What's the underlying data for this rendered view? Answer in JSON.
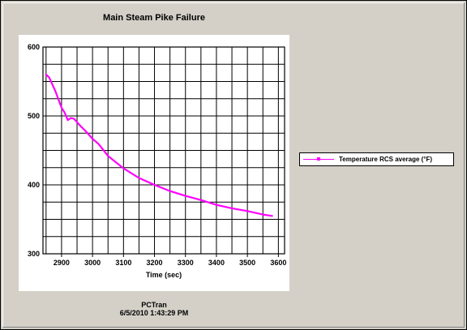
{
  "window": {
    "title": "Main Steam Pike Failure",
    "footer_line1": "PCTran",
    "footer_line2": "6/5/2010 1:43:29 PM"
  },
  "chart_data": {
    "type": "line",
    "title": "Main Steam Pike Failure",
    "xlabel": "Time (sec)",
    "ylabel": "",
    "xlim": [
      2840,
      3620
    ],
    "ylim": [
      300,
      600
    ],
    "x_ticks": [
      2900,
      3000,
      3100,
      3200,
      3300,
      3400,
      3500,
      3600
    ],
    "y_ticks": [
      300,
      400,
      500,
      600
    ],
    "grid": true,
    "legend_position": "right",
    "series": [
      {
        "name": "Temperature RCS average (°F)",
        "color": "#ff00ff",
        "x": [
          2850,
          2860,
          2870,
          2880,
          2890,
          2900,
          2910,
          2920,
          2930,
          2940,
          2950,
          2960,
          2980,
          3000,
          3020,
          3050,
          3100,
          3150,
          3200,
          3250,
          3300,
          3350,
          3400,
          3450,
          3500,
          3550,
          3580
        ],
        "y": [
          560,
          556,
          546,
          536,
          524,
          512,
          505,
          494,
          497,
          496,
          491,
          486,
          477,
          467,
          459,
          442,
          424,
          410,
          400,
          391,
          384,
          378,
          371,
          366,
          362,
          357,
          355
        ]
      }
    ]
  }
}
